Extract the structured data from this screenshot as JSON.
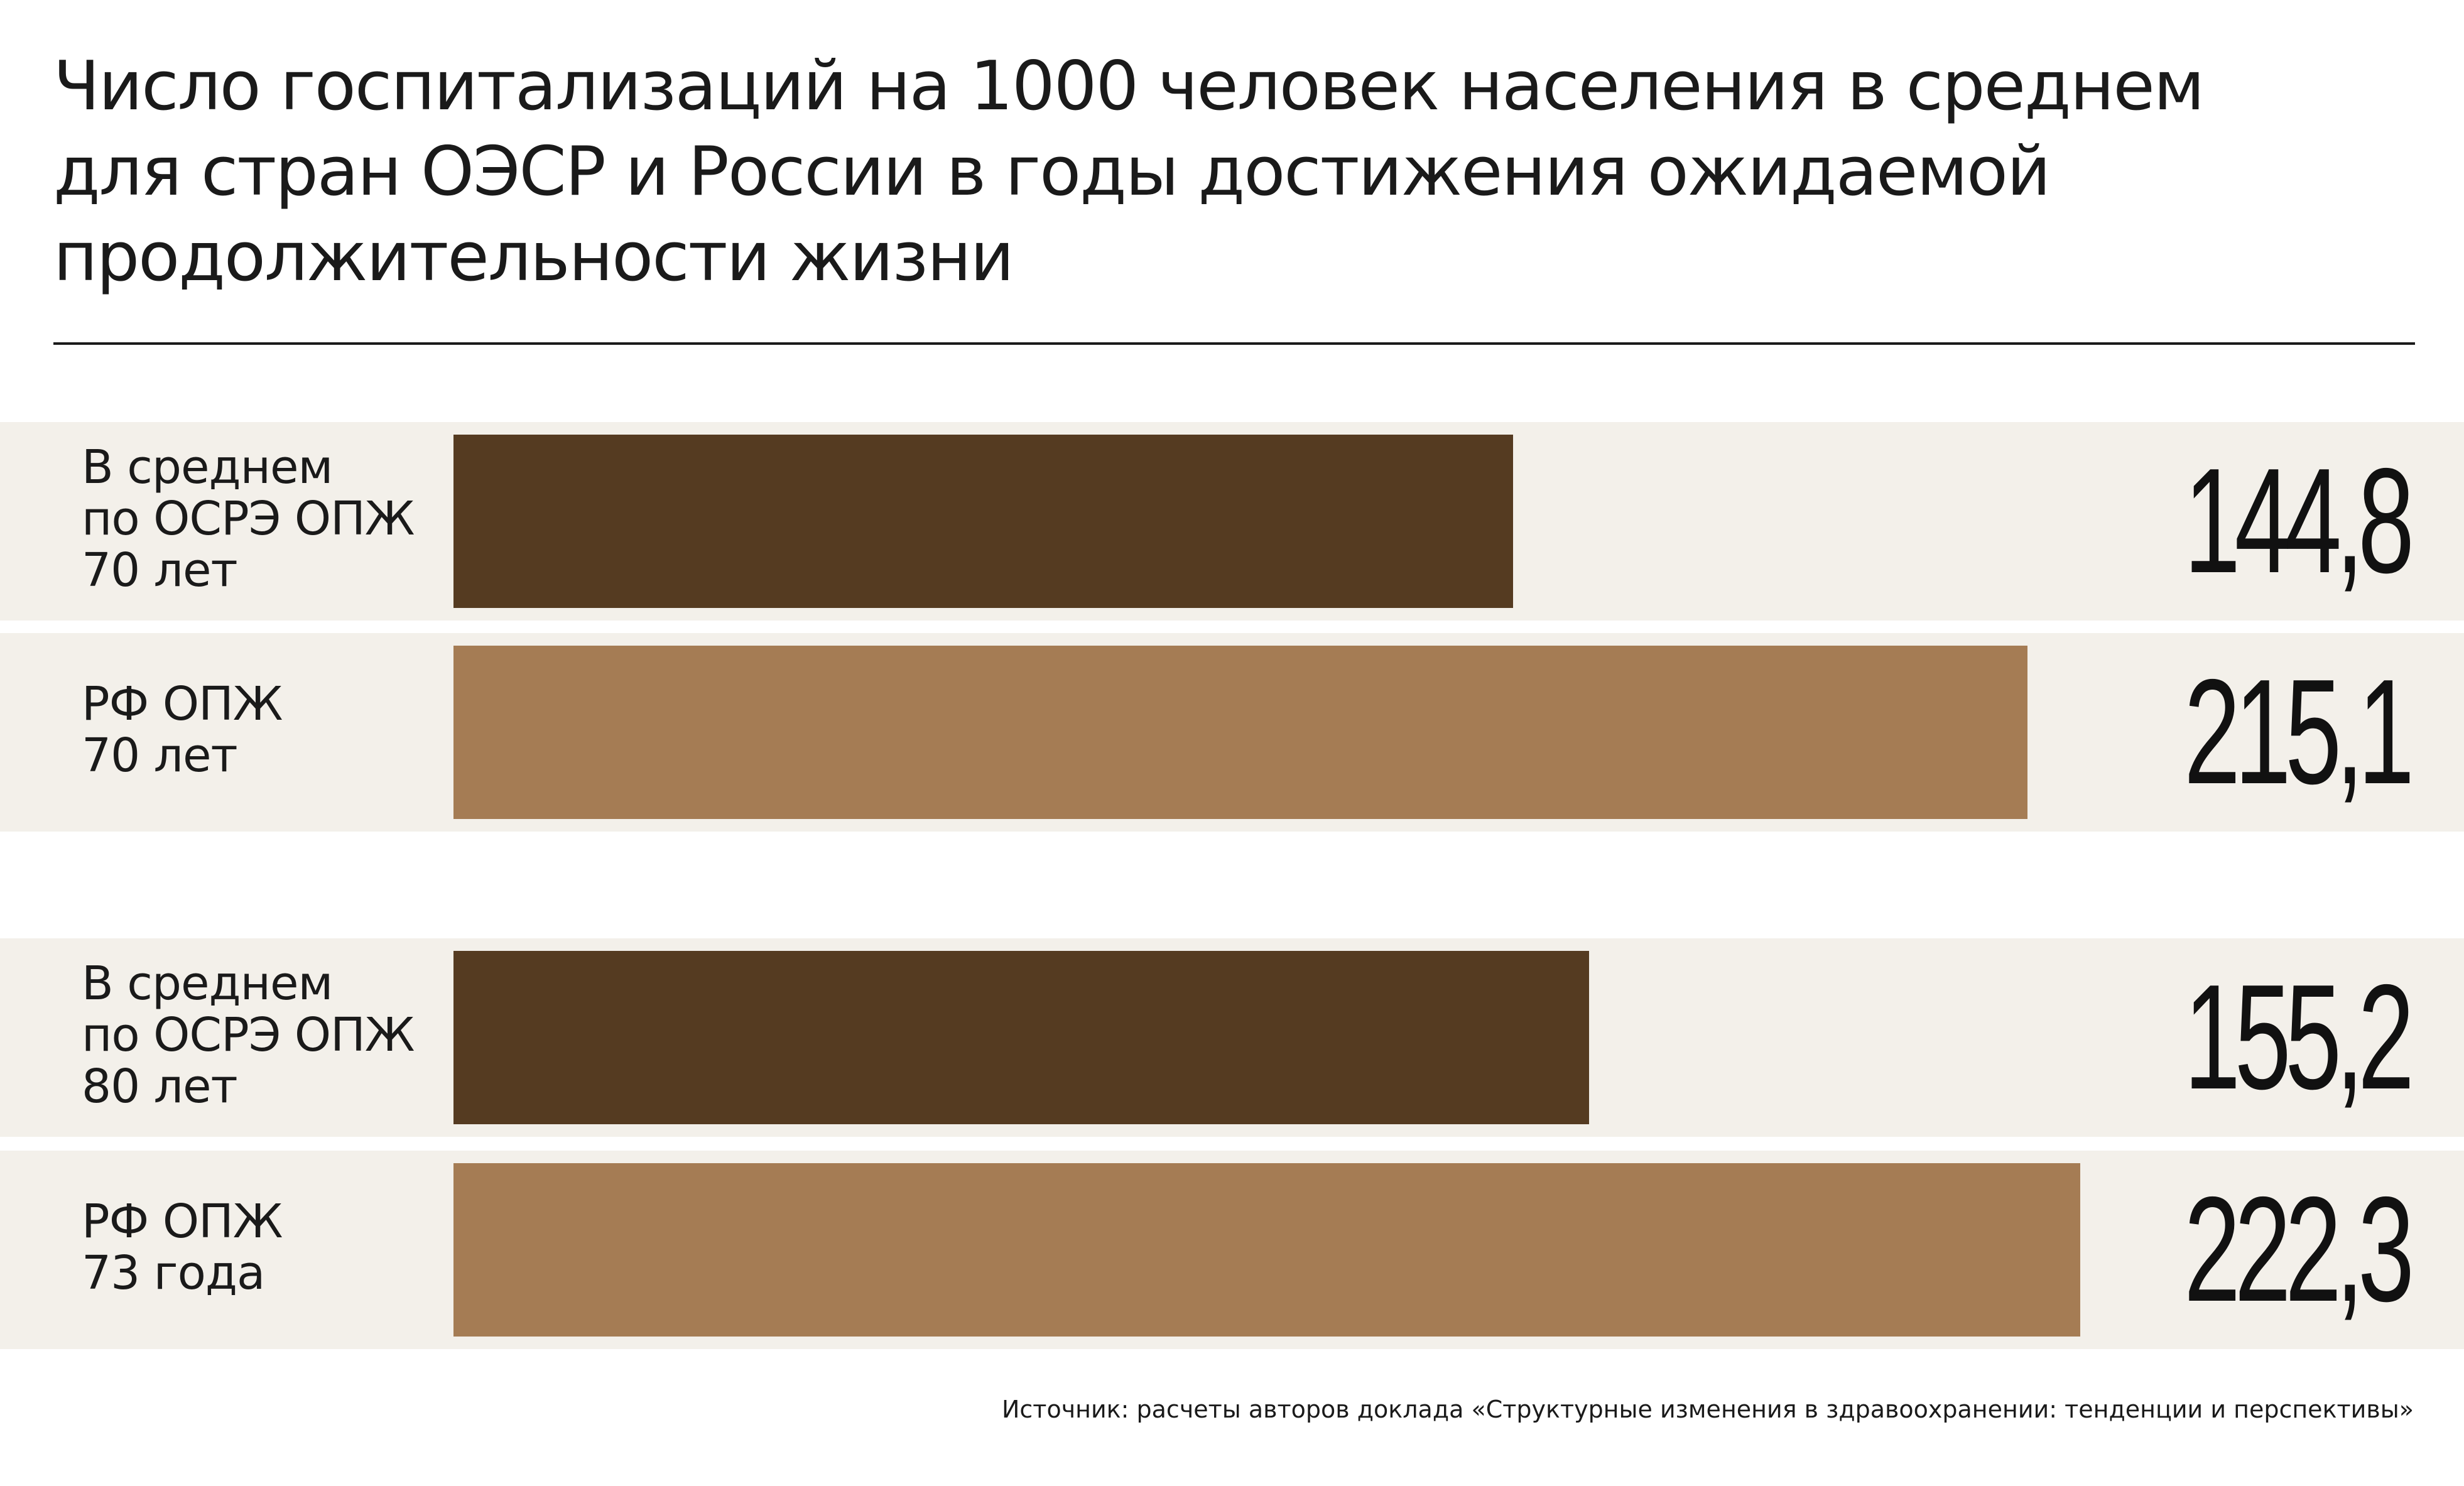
{
  "chart_data": {
    "type": "bar",
    "orientation": "horizontal",
    "title_lines": [
      "Число госпитализаций на 1000 человек населения в среднем",
      "для стран ОЭСР и России в годы достижения ожидаемой",
      "продолжительности жизни"
    ],
    "categories": [
      [
        "В среднем",
        "по ОСРЭ ОПЖ",
        "70 лет"
      ],
      [
        "РФ ОПЖ",
        "70 лет"
      ],
      [
        "В среднем",
        "по ОСРЭ ОПЖ",
        "80 лет"
      ],
      [
        "РФ ОПЖ",
        "73 года"
      ]
    ],
    "values": [
      144.8,
      215.1,
      155.2,
      222.3
    ],
    "value_labels": [
      "144,8",
      "215,1",
      "155,2",
      "222,3"
    ],
    "bar_colors": [
      "#553b21",
      "#a57c54",
      "#553b21",
      "#a57c54"
    ],
    "row_background": "#f3f0ea",
    "axis_max": 250,
    "grid": false,
    "source": "Источник: расчеты авторов доклада «Структурные изменения в здравоохранении: тенденции и перспективы»"
  }
}
